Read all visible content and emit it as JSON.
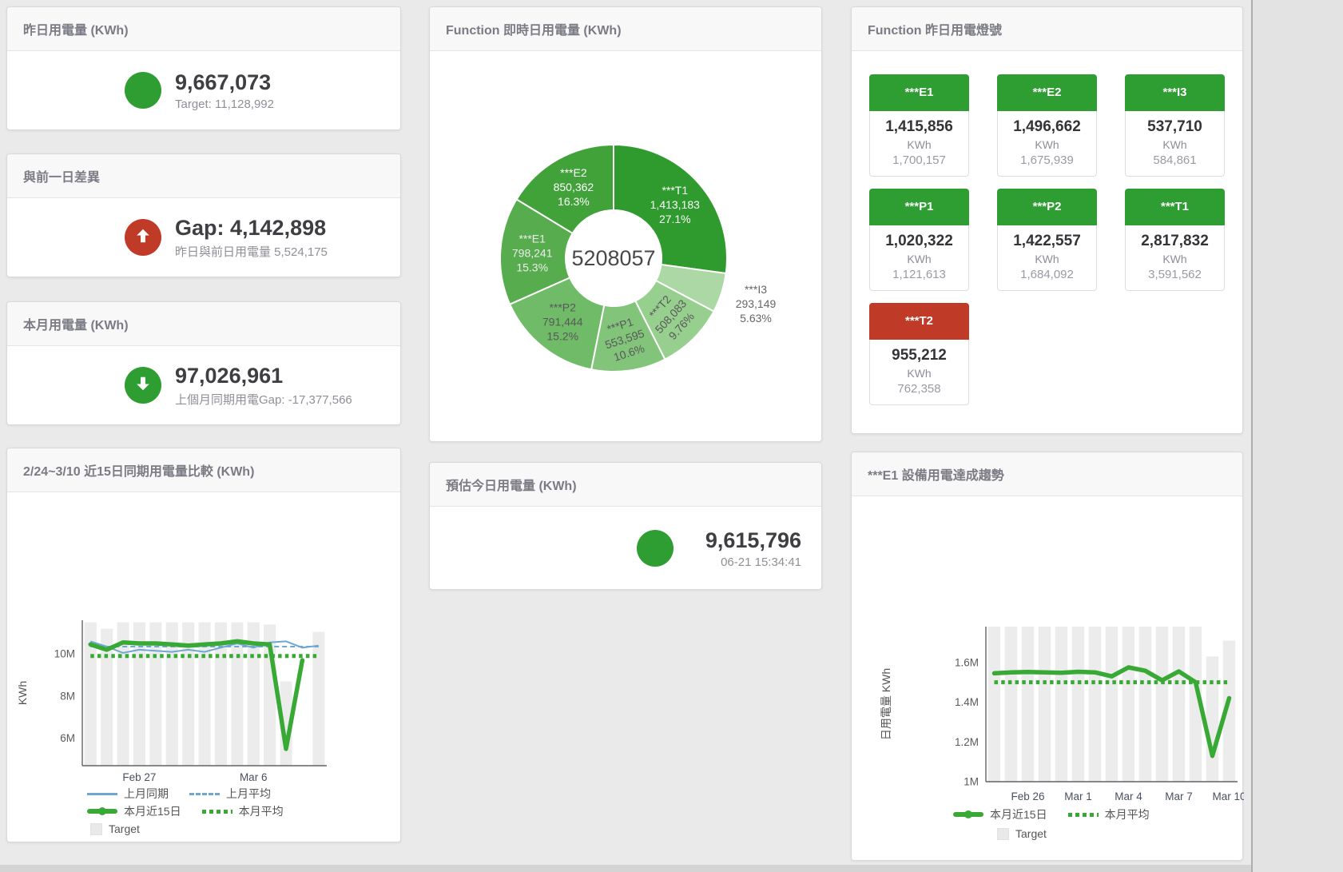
{
  "colors": {
    "accent_green": "#2f9e32",
    "accent_red": "#c03a28",
    "line_blue": "#6ea7d4",
    "line_green": "#39a935",
    "target_bar_gray": "#ececec"
  },
  "cards": {
    "yesterday": {
      "title": "昨日用電量 (KWh)",
      "value": "9,667,073",
      "sub": "Target: 11,128,992",
      "status": "green"
    },
    "gap": {
      "title": "與前一日差異",
      "value": "Gap: 4,142,898",
      "sub": "昨日與前日用電量 5,524,175",
      "status": "red",
      "icon": "arrow-up"
    },
    "month": {
      "title": "本月用電量 (KWh)",
      "value": "97,026,961",
      "sub": "上個月同期用電Gap: -17,377,566",
      "status": "green",
      "icon": "arrow-down"
    },
    "estimate": {
      "title": "預估今日用電量 (KWh)",
      "value": "9,615,796",
      "sub": "06-21 15:34:41",
      "status": "green"
    }
  },
  "lights": {
    "title": "Function 昨日用電燈號",
    "tiles": [
      {
        "label": "***E1",
        "value": "1,415,856",
        "unit": "KWh",
        "target": "1,700,157",
        "status": "green"
      },
      {
        "label": "***E2",
        "value": "1,496,662",
        "unit": "KWh",
        "target": "1,675,939",
        "status": "green"
      },
      {
        "label": "***I3",
        "value": "537,710",
        "unit": "KWh",
        "target": "584,861",
        "status": "green"
      },
      {
        "label": "***P1",
        "value": "1,020,322",
        "unit": "KWh",
        "target": "1,121,613",
        "status": "green"
      },
      {
        "label": "***P2",
        "value": "1,422,557",
        "unit": "KWh",
        "target": "1,684,092",
        "status": "green"
      },
      {
        "label": "***T1",
        "value": "2,817,832",
        "unit": "KWh",
        "target": "3,591,562",
        "status": "green"
      },
      {
        "label": "***T2",
        "value": "955,212",
        "unit": "KWh",
        "target": "762,358",
        "status": "red"
      }
    ]
  },
  "chart_data": [
    {
      "type": "pie",
      "title": "Function 即時日用電量 (KWh)",
      "center_total": "5208057",
      "legend_position": "none",
      "slices": [
        {
          "name": "***T1",
          "value": 1413183,
          "pct": "27.1%",
          "color": "#2f9b2f",
          "label_color": "#ffffff"
        },
        {
          "name": "***I3",
          "value": 293149,
          "pct": "5.63%",
          "color": "#abd8a4",
          "label_color": "#666666",
          "outside": true
        },
        {
          "name": "***T2",
          "value": 508083,
          "pct": "9.76%",
          "color": "#97cf8f",
          "label_color": "#58585a"
        },
        {
          "name": "***P1",
          "value": 553595,
          "pct": "10.6%",
          "color": "#82c47a",
          "label_color": "#58585a"
        },
        {
          "name": "***P2",
          "value": 791444,
          "pct": "15.2%",
          "color": "#70bb67",
          "label_color": "#58585a"
        },
        {
          "name": "***E1",
          "value": 798241,
          "pct": "15.3%",
          "color": "#57ad4e",
          "label_color": "#ededed"
        },
        {
          "name": "***E2",
          "value": 850362,
          "pct": "16.3%",
          "color": "#41a23a",
          "label_color": "#ffffff"
        }
      ]
    },
    {
      "type": "line",
      "title": "2/24~3/10 近15日同期用電量比較 (KWh)",
      "ylabel": "KWh",
      "ylim": [
        4.7,
        11.6
      ],
      "unit": "M KWh",
      "grid": false,
      "legend_position": "bottom",
      "n": 15,
      "y_ticks": [
        {
          "v": 6,
          "label": "6M"
        },
        {
          "v": 8,
          "label": "8M"
        },
        {
          "v": 10,
          "label": "10M"
        }
      ],
      "x_ticks": [
        {
          "i": 3,
          "label": "Feb 27"
        },
        {
          "i": 10,
          "label": "Mar 6"
        }
      ],
      "target": {
        "name": "Target",
        "color": "#ececec",
        "values": [
          11.5,
          11.2,
          11.5,
          11.5,
          11.5,
          11.5,
          11.5,
          11.5,
          11.5,
          11.5,
          11.5,
          11.4,
          8.7,
          null,
          11.05
        ]
      },
      "series": [
        {
          "name": "上月同期",
          "style": "thin",
          "color": "#6ea7d4",
          "values": [
            10.6,
            10.35,
            10.05,
            10.2,
            10.15,
            10.1,
            10.2,
            10.1,
            10.3,
            10.5,
            10.3,
            10.55,
            10.6,
            10.3,
            10.4
          ]
        },
        {
          "name": "上月平均",
          "style": "dashed",
          "color": "#6ea7d4",
          "values": [
            10.35,
            10.35,
            10.35,
            10.35,
            10.35,
            10.35,
            10.35,
            10.35,
            10.35,
            10.35,
            10.35,
            10.35,
            10.35,
            10.35,
            10.35
          ]
        },
        {
          "name": "本月近15日",
          "style": "thick",
          "color": "#39a935",
          "values": [
            10.45,
            10.2,
            10.55,
            10.5,
            10.5,
            10.45,
            10.4,
            10.45,
            10.5,
            10.6,
            10.5,
            10.45,
            5.5,
            9.7,
            null
          ]
        },
        {
          "name": "本月平均",
          "style": "dotted",
          "color": "#39a935",
          "values": [
            9.9,
            9.9,
            9.9,
            9.9,
            9.9,
            9.9,
            9.9,
            9.9,
            9.9,
            9.9,
            9.9,
            9.9,
            9.9,
            9.9,
            9.9
          ]
        }
      ]
    },
    {
      "type": "line",
      "title": "***E1 設備用電達成趨勢",
      "ylabel": "日用電量 KWh",
      "ylim": [
        1.0,
        1.78
      ],
      "unit": "M KWh",
      "grid": false,
      "legend_position": "bottom",
      "n": 15,
      "y_ticks": [
        {
          "v": 1,
          "label": "1M"
        },
        {
          "v": 1.2,
          "label": "1.2M"
        },
        {
          "v": 1.4,
          "label": "1.4M"
        },
        {
          "v": 1.6,
          "label": "1.6M"
        }
      ],
      "x_ticks": [
        {
          "i": 2,
          "label": "Feb 26"
        },
        {
          "i": 5,
          "label": "Mar 1"
        },
        {
          "i": 8,
          "label": "Mar 4"
        },
        {
          "i": 11,
          "label": "Mar 7"
        },
        {
          "i": 14,
          "label": "Mar 10"
        }
      ],
      "target": {
        "name": "Target",
        "color": "#ececec",
        "values": [
          1.78,
          1.78,
          1.78,
          1.78,
          1.78,
          1.78,
          1.78,
          1.78,
          1.78,
          1.78,
          1.78,
          1.78,
          1.78,
          1.63,
          1.71
        ]
      },
      "series": [
        {
          "name": "本月近15日",
          "style": "thick",
          "color": "#39a935",
          "values": [
            1.545,
            1.55,
            1.552,
            1.55,
            1.548,
            1.553,
            1.55,
            1.53,
            1.575,
            1.558,
            1.51,
            1.555,
            1.5,
            1.13,
            1.42
          ]
        },
        {
          "name": "本月平均",
          "style": "dotted",
          "color": "#39a935",
          "values": [
            1.5,
            1.5,
            1.5,
            1.5,
            1.5,
            1.5,
            1.5,
            1.5,
            1.5,
            1.5,
            1.5,
            1.5,
            1.5,
            1.5,
            1.5
          ]
        }
      ]
    }
  ]
}
